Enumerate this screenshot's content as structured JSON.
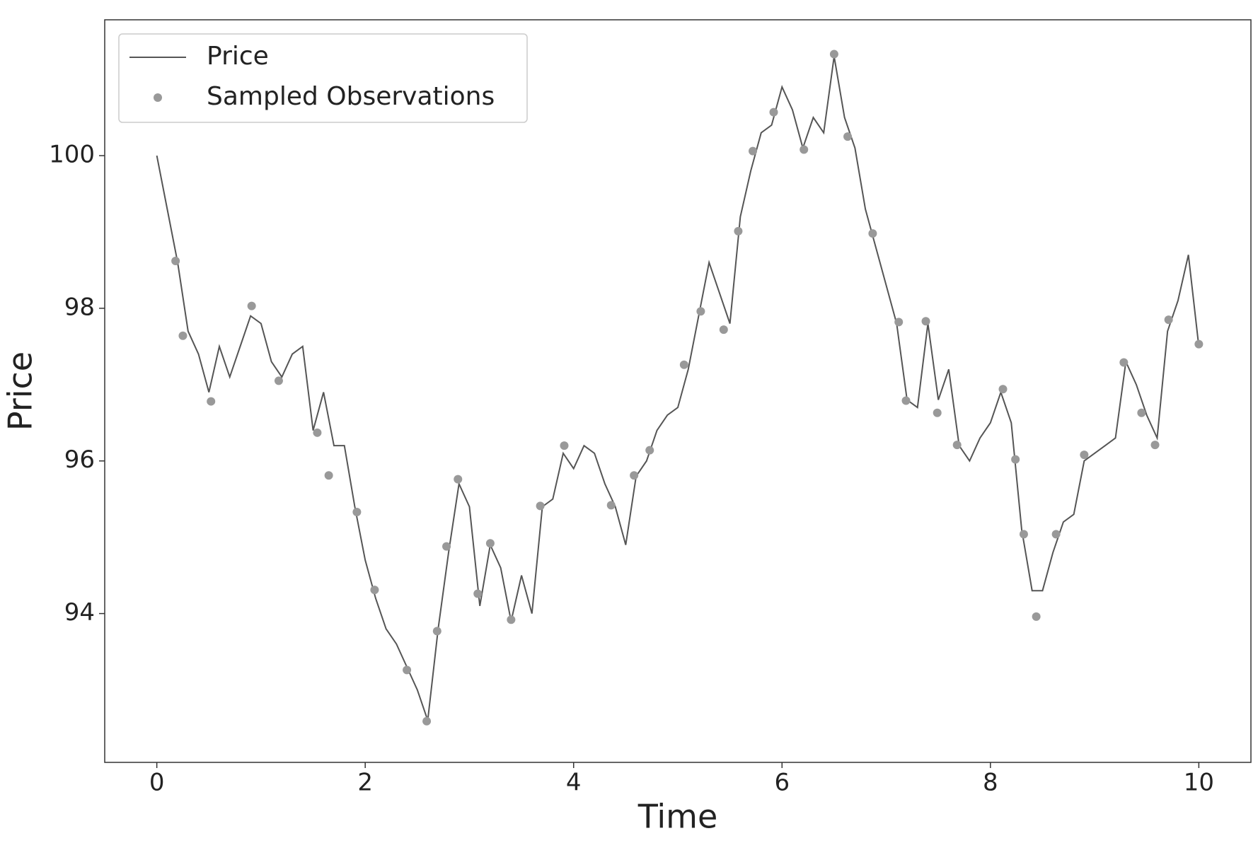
{
  "chart_data": {
    "type": "line",
    "xlabel": "Time",
    "ylabel": "Price",
    "xlim": [
      -0.5,
      10.5
    ],
    "ylim": [
      92.05,
      101.78
    ],
    "xticks": [
      0,
      2,
      4,
      6,
      8,
      10
    ],
    "yticks": [
      94,
      96,
      98,
      100
    ],
    "legend": "upper left",
    "series": [
      {
        "name": "Price",
        "type": "line",
        "color": "#555555",
        "x": [
          0,
          0.1,
          0.2,
          0.3,
          0.4,
          0.5,
          0.6,
          0.7,
          0.8,
          0.9,
          1,
          1.1,
          1.2,
          1.3,
          1.4,
          1.5,
          1.6,
          1.7,
          1.8,
          1.9,
          2,
          2.1,
          2.2,
          2.3,
          2.4,
          2.5,
          2.6,
          2.7,
          2.8,
          2.9,
          3,
          3.1,
          3.2,
          3.3,
          3.4,
          3.5,
          3.6,
          3.7,
          3.8,
          3.9,
          4,
          4.1,
          4.2,
          4.3,
          4.4,
          4.5,
          4.6,
          4.7,
          4.8,
          4.9,
          5,
          5.1,
          5.2,
          5.3,
          5.4,
          5.5,
          5.6,
          5.7,
          5.8,
          5.9,
          6,
          6.1,
          6.2,
          6.3,
          6.4,
          6.5,
          6.6,
          6.7,
          6.8,
          6.9,
          7,
          7.1,
          7.2,
          7.3,
          7.4,
          7.5,
          7.6,
          7.7,
          7.8,
          7.9,
          8,
          8.1,
          8.2,
          8.3,
          8.4,
          8.5,
          8.6,
          8.7,
          8.8,
          8.9,
          9,
          9.1,
          9.2,
          9.3,
          9.4,
          9.5,
          9.6,
          9.7,
          9.8,
          9.9,
          10
        ],
        "values": [
          100.0,
          99.3,
          98.6,
          97.7,
          97.4,
          96.9,
          97.5,
          97.1,
          97.5,
          97.9,
          97.8,
          97.3,
          97.1,
          97.4,
          97.5,
          96.4,
          96.9,
          96.2,
          96.2,
          95.4,
          94.7,
          94.2,
          93.8,
          93.6,
          93.3,
          93.0,
          92.6,
          93.8,
          94.8,
          95.7,
          95.4,
          94.1,
          94.9,
          94.6,
          93.9,
          94.5,
          94.0,
          95.4,
          95.5,
          96.1,
          95.9,
          96.2,
          96.1,
          95.7,
          95.4,
          94.9,
          95.8,
          96.0,
          96.4,
          96.6,
          96.7,
          97.2,
          97.9,
          98.6,
          98.2,
          97.8,
          99.2,
          99.8,
          100.3,
          100.4,
          100.9,
          100.6,
          100.1,
          100.5,
          100.3,
          101.3,
          100.5,
          100.1,
          99.3,
          98.8,
          98.3,
          97.8,
          96.8,
          96.7,
          97.8,
          96.8,
          97.2,
          96.2,
          96.0,
          96.3,
          96.5,
          96.9,
          96.5,
          95.1,
          94.3,
          94.3,
          94.8,
          95.2,
          95.3,
          96.0,
          96.1,
          96.2,
          96.3,
          97.3,
          97.0,
          96.6,
          96.3,
          97.7,
          98.1,
          98.7,
          97.5
        ]
      },
      {
        "name": "Sampled Observations",
        "type": "scatter",
        "color": "#999999",
        "x": [
          0.18,
          0.25,
          0.52,
          0.91,
          1.17,
          1.54,
          1.65,
          1.92,
          2.09,
          2.4,
          2.59,
          2.69,
          2.78,
          2.89,
          3.08,
          3.2,
          3.4,
          3.68,
          3.91,
          4.36,
          4.58,
          4.73,
          5.06,
          5.22,
          5.44,
          5.58,
          5.72,
          5.92,
          6.21,
          6.5,
          6.63,
          6.87,
          7.12,
          7.19,
          7.38,
          7.49,
          7.68,
          8.12,
          8.24,
          8.32,
          8.44,
          8.63,
          8.9,
          9.28,
          9.45,
          9.58,
          9.71,
          10.0
        ],
        "values": [
          98.62,
          97.64,
          96.78,
          98.03,
          97.05,
          96.37,
          95.81,
          95.33,
          94.31,
          93.26,
          92.59,
          93.77,
          94.88,
          95.76,
          94.26,
          94.92,
          93.92,
          95.41,
          96.2,
          95.42,
          95.81,
          96.14,
          97.26,
          97.96,
          97.72,
          99.01,
          100.06,
          100.57,
          100.08,
          101.33,
          100.25,
          98.98,
          97.82,
          96.79,
          97.83,
          96.63,
          96.21,
          96.94,
          96.02,
          95.04,
          93.96,
          95.04,
          96.08,
          97.29,
          96.63,
          96.21,
          97.85,
          97.53
        ]
      }
    ]
  }
}
